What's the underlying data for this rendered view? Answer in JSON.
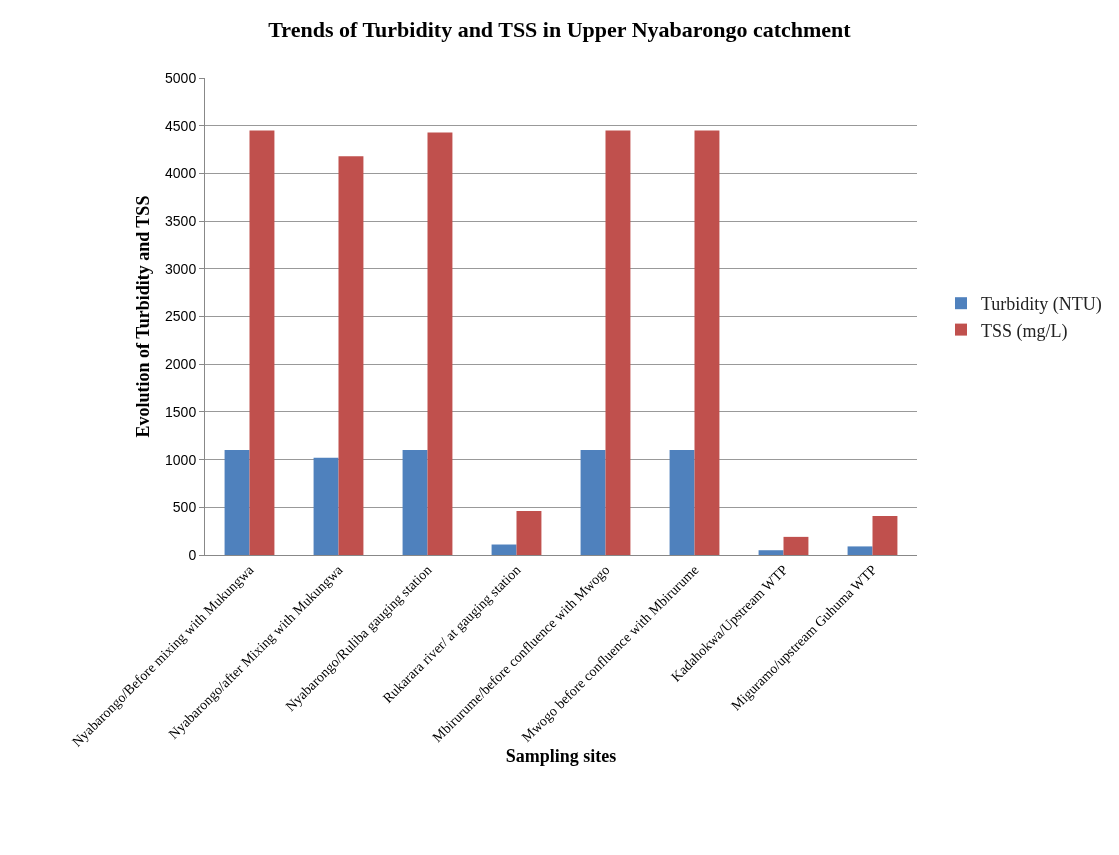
{
  "chart_data": {
    "type": "bar",
    "title": "Trends of Turbidity and TSS in Upper Nyabarongo catchment",
    "xlabel": "Sampling sites",
    "ylabel": "Evolution of Turbidity and TSS",
    "categories": [
      "Nyabarongo/Before mixing with Mukungwa",
      "Nyabarongo/after Mixing with Mukungwa",
      "Nyabarongo/Ruliba gauging station",
      "Rukarara river/ at gauging station",
      "Mbirurume/before confluence with Mwogo",
      "Mwogo before confluence with Mbirurume",
      "Kadahokwa/Upstream WTP",
      "Miguramo/upstream Guhuma WTP"
    ],
    "series": [
      {
        "name": "Turbidity (NTU)",
        "color": "#4f81bd",
        "values": [
          1100,
          1020,
          1100,
          110,
          1100,
          1100,
          50,
          90
        ]
      },
      {
        "name": "TSS (mg/L)",
        "color": "#c0504d",
        "values": [
          4450,
          4180,
          4430,
          460,
          4450,
          4450,
          190,
          410
        ]
      }
    ],
    "ylim": [
      0,
      5000
    ],
    "yticks": [
      0,
      500,
      1000,
      1500,
      2000,
      2500,
      3000,
      3500,
      4000,
      4500,
      5000
    ],
    "grid": "y",
    "legend": "right"
  }
}
